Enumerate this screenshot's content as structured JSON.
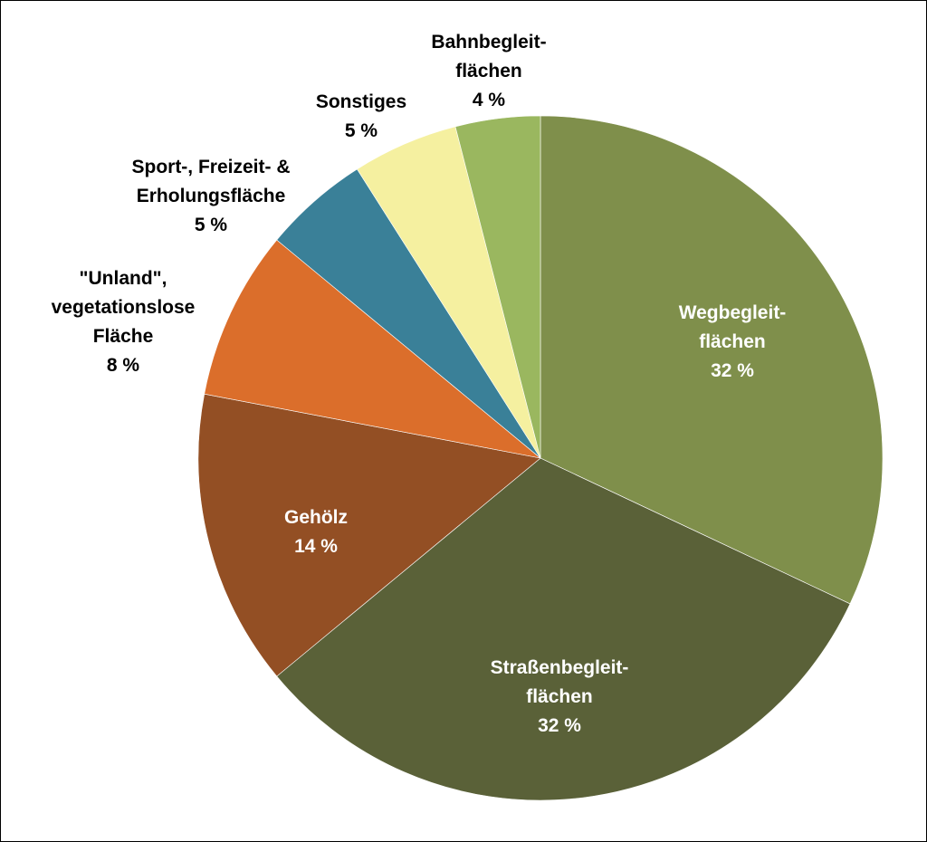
{
  "chart_data": {
    "type": "pie",
    "title": "",
    "start_angle_deg": 0,
    "direction": "clockwise",
    "slices": [
      {
        "lines": [
          "Wegbegleit-",
          "flächen"
        ],
        "value": 32,
        "value_label": "32 %",
        "color": "#7F8F4B",
        "label_position": "inside"
      },
      {
        "lines": [
          "Straßenbegleit-",
          "flächen"
        ],
        "value": 32,
        "value_label": "32 %",
        "color": "#5A6138",
        "label_position": "inside"
      },
      {
        "lines": [
          "Gehölz"
        ],
        "value": 14,
        "value_label": "14 %",
        "color": "#934F24",
        "label_position": "inside"
      },
      {
        "lines": [
          "\"Unland\",",
          "vegetationslose",
          "Fläche"
        ],
        "value": 8,
        "value_label": "8 %",
        "color": "#DB6E2B",
        "label_position": "outside"
      },
      {
        "lines": [
          "Sport-, Freizeit- &",
          "Erholungsfläche"
        ],
        "value": 5,
        "value_label": "5 %",
        "color": "#3A8098",
        "label_position": "outside"
      },
      {
        "lines": [
          "Sonstiges"
        ],
        "value": 5,
        "value_label": "5 %",
        "color": "#F5F0A0",
        "label_position": "outside"
      },
      {
        "lines": [
          "Bahnbegleit-",
          "flächen"
        ],
        "value": 4,
        "value_label": "4 %",
        "color": "#9AB75F",
        "label_position": "outside"
      }
    ]
  }
}
